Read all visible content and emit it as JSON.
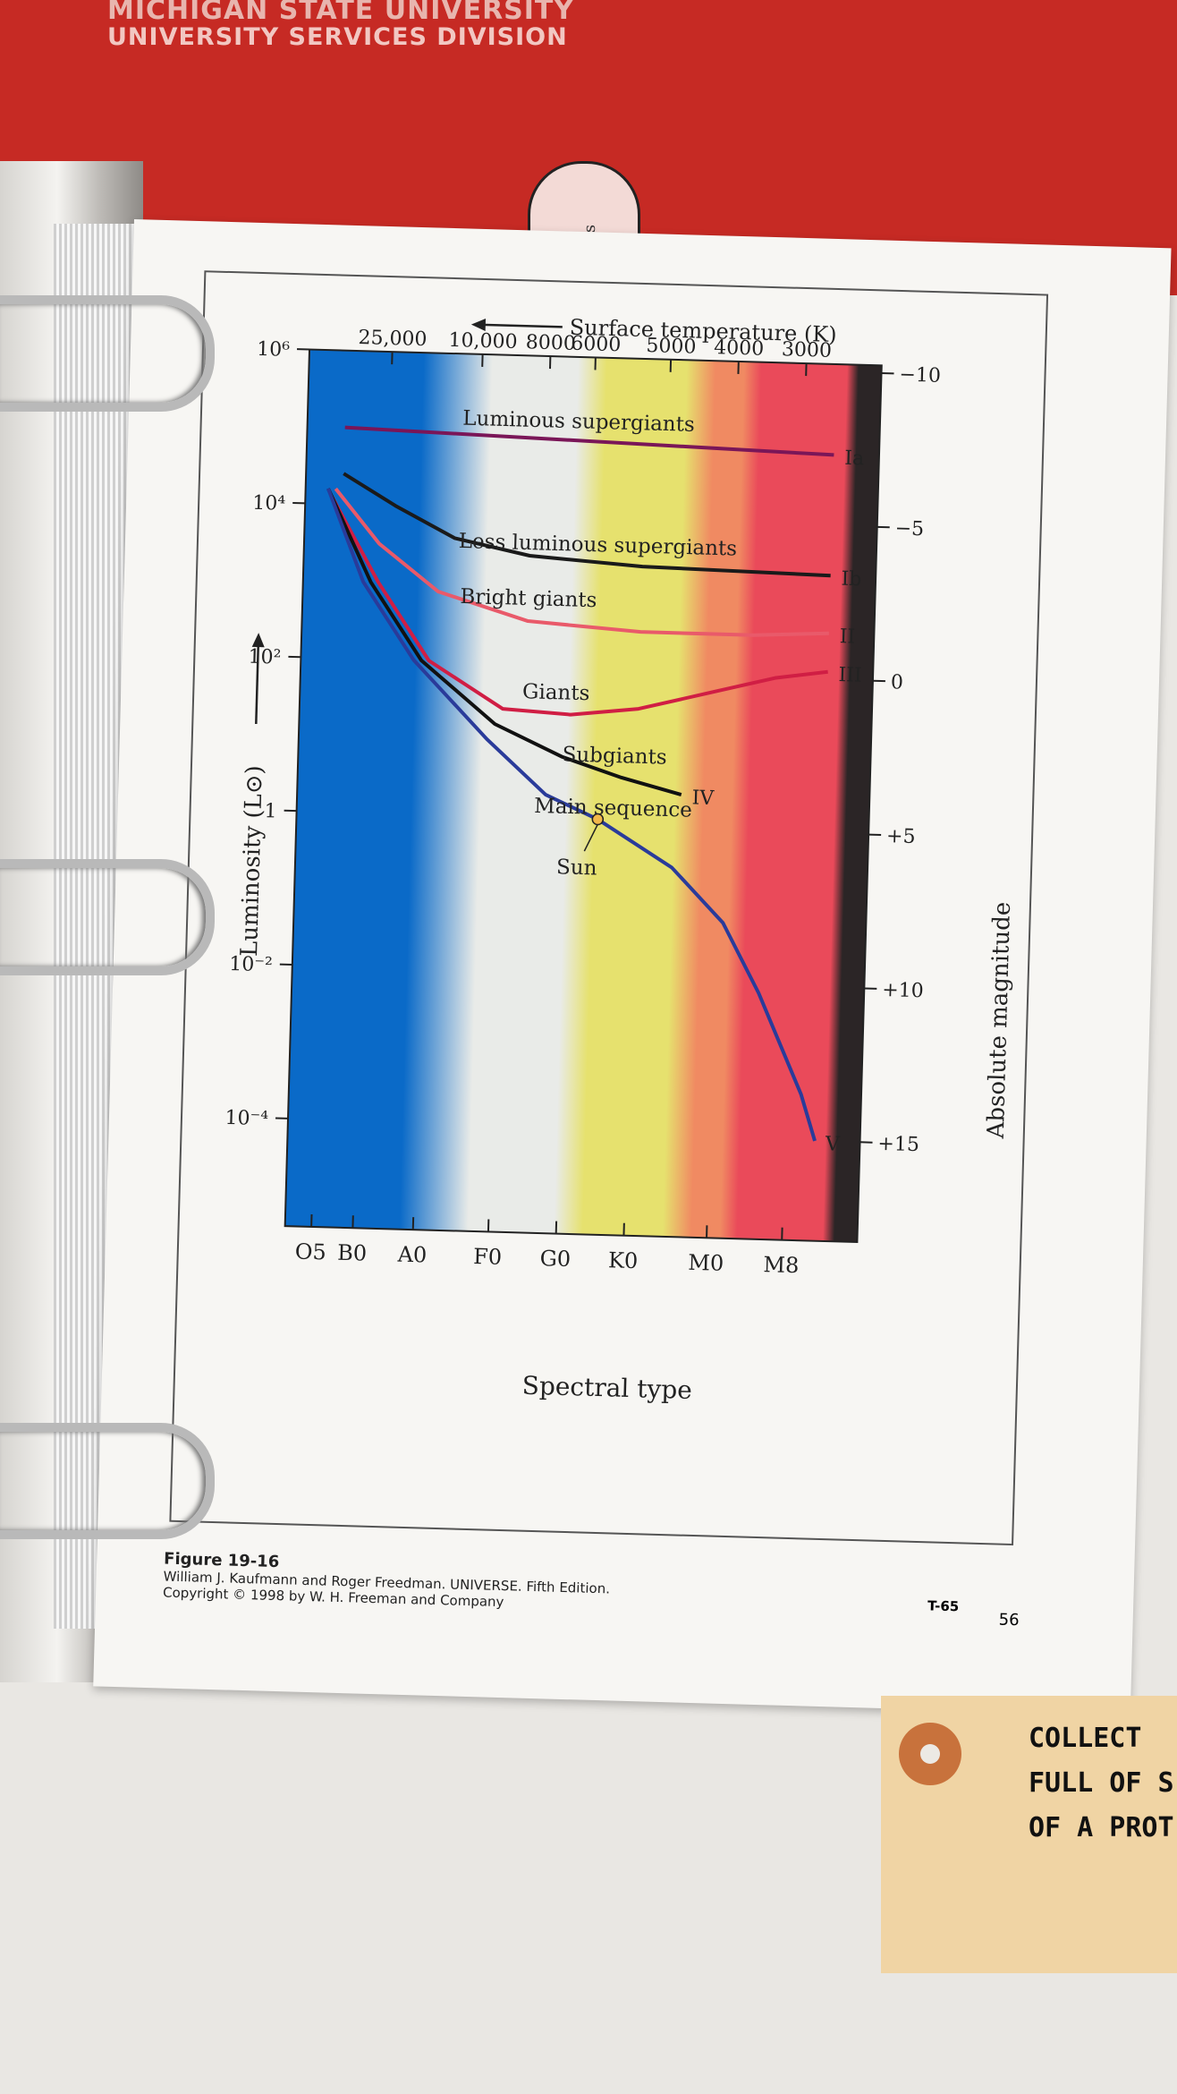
{
  "cover": {
    "line1": "MICHIGAN STATE UNIVERSITY",
    "line2": "UNIVERSITY SERVICES DIVISION"
  },
  "tab": {
    "text": "eres"
  },
  "chart_data": {
    "type": "line",
    "title": "",
    "top_axis_label": "Surface temperature (K)",
    "top_ticks": [
      "25,000",
      "10,000",
      "8000",
      "6000",
      "5000",
      "4000",
      "3000"
    ],
    "xlabel": "Spectral type",
    "x_categories": [
      "O5",
      "B0",
      "A0",
      "F0",
      "G0",
      "K0",
      "M0",
      "M8"
    ],
    "ylabel": "Luminosity (L⊙)",
    "y_log_ticks": [
      6,
      4,
      2,
      0,
      -2,
      -4
    ],
    "y_tick_labels": [
      "10⁶",
      "10⁴",
      "10²",
      "1",
      "10⁻²",
      "10⁻⁴"
    ],
    "ylim_log": [
      -5.4,
      6
    ],
    "right_axis_label": "Absolute magnitude",
    "right_ticks": [
      {
        "label": "−10",
        "logL": 5.9
      },
      {
        "label": "−5",
        "logL": 3.9
      },
      {
        "label": "0",
        "logL": 1.9
      },
      {
        "label": "+5",
        "logL": -0.1
      },
      {
        "label": "+10",
        "logL": -2.1
      },
      {
        "label": "+15",
        "logL": -4.1
      }
    ],
    "bands": [
      "#0a6ac8",
      "#e9ebe8",
      "#e6e16e",
      "#f08a62",
      "#ea4a5a",
      "#2b2526"
    ],
    "series": [
      {
        "name": "Luminous supergiants",
        "class": "Ia",
        "color": "#7a1658",
        "x": [
          0.5,
          7.0
        ],
        "logL": [
          5.0,
          4.82
        ]
      },
      {
        "name": "Less luminous supergiants",
        "class": "Ib",
        "color": "#1a1a1a",
        "x": [
          0.5,
          1.2,
          2.0,
          3.0,
          4.5,
          7.0
        ],
        "logL": [
          4.4,
          4.0,
          3.6,
          3.4,
          3.3,
          3.25
        ]
      },
      {
        "name": "Bright giants",
        "class": "II",
        "color": "#e95a6a",
        "x": [
          0.4,
          1.0,
          1.8,
          3.0,
          4.5,
          6.0,
          7.0
        ],
        "logL": [
          4.2,
          3.5,
          2.9,
          2.55,
          2.45,
          2.45,
          2.5
        ]
      },
      {
        "name": "Giants",
        "class": "III",
        "color": "#d01e44",
        "x": [
          0.35,
          1.0,
          1.7,
          2.7,
          3.6,
          4.5,
          5.5,
          6.3,
          7.0
        ],
        "logL": [
          4.1,
          3.0,
          2.0,
          1.4,
          1.35,
          1.45,
          1.7,
          1.9,
          2.0
        ]
      },
      {
        "name": "Subgiants",
        "class": "IV",
        "color": "#111111",
        "x": [
          0.3,
          0.9,
          1.6,
          2.6,
          3.5,
          4.3,
          5.1
        ],
        "logL": [
          4.2,
          3.0,
          2.0,
          1.2,
          0.8,
          0.55,
          0.35
        ]
      },
      {
        "name": "Main sequence",
        "class": "V",
        "color": "#2a3b9a",
        "x": [
          0.3,
          0.8,
          1.5,
          2.5,
          3.3,
          4.0,
          5.0,
          5.7,
          6.2,
          6.8,
          7.0
        ],
        "logL": [
          4.2,
          3.0,
          2.0,
          1.0,
          0.3,
          0.0,
          -0.6,
          -1.3,
          -2.2,
          -3.5,
          -4.1
        ]
      }
    ],
    "annotations": [
      {
        "text": "Sun",
        "x": 4.0,
        "logL": 0.0
      }
    ]
  },
  "caption": {
    "title": "Figure 19-16",
    "line1": "William J. Kaufmann and Roger Freedman. UNIVERSE. Fifth Edition.",
    "line2": "Copyright © 1998 by W. H. Freeman and Company"
  },
  "page_code": "T-65",
  "page_code2": "56",
  "tag_lines": [
    "COLLECT",
    "FULL OF S",
    "OF A PROT"
  ]
}
